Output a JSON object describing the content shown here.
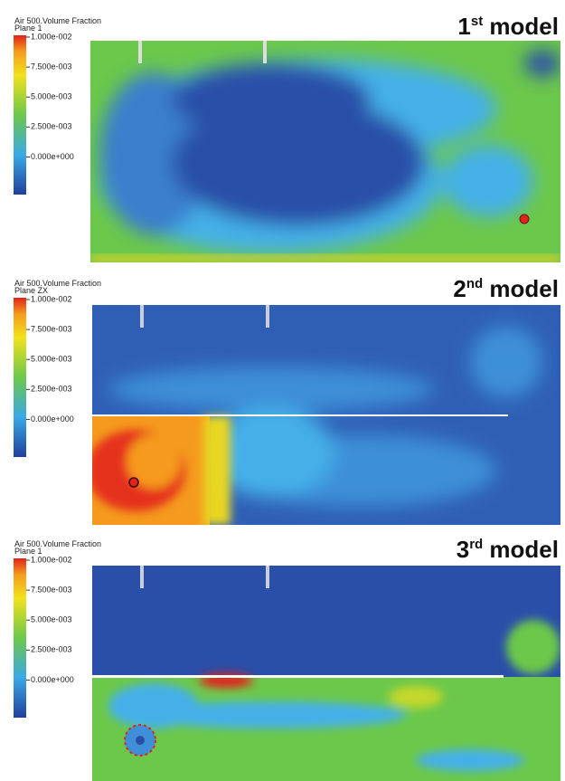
{
  "panels": [
    {
      "legend_title": "Air 500.Volume Fraction",
      "legend_subtitle": "Plane 1",
      "legend_ticks": [
        "1.000e-002",
        "7.500e-003",
        "5.000e-003",
        "2.500e-003",
        "0.000e+000"
      ],
      "model_number": "1",
      "model_suffix": "st",
      "model_word": "model"
    },
    {
      "legend_title": "Air 500.Volume Fraction",
      "legend_subtitle": "Plane ZX",
      "legend_ticks": [
        "1.000e-002",
        "7.500e-003",
        "5.000e-003",
        "2.500e-003",
        "0.000e+000"
      ],
      "model_number": "2",
      "model_suffix": "nd",
      "model_word": "model"
    },
    {
      "legend_title": "Air 500.Volume Fraction",
      "legend_subtitle": "Plane 1",
      "legend_ticks": [
        "1.000e-002",
        "7.500e-003",
        "5.000e-003",
        "2.500e-003",
        "0.000e+000"
      ],
      "model_number": "3",
      "model_suffix": "rd",
      "model_word": "model"
    }
  ]
}
